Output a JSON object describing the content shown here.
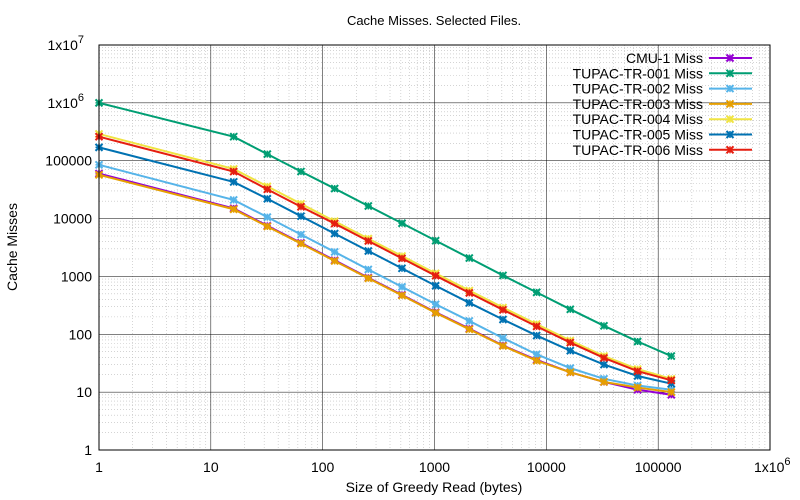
{
  "chart_data": {
    "type": "line",
    "title": "Cache Misses. Selected Files.",
    "xlabel": "Size of Greedy Read (bytes)",
    "ylabel": "Cache Misses",
    "x_scale": "log",
    "y_scale": "log",
    "xlim": [
      1,
      1000000
    ],
    "ylim": [
      1,
      10000000
    ],
    "grid": true,
    "legend_position": "top-right",
    "x_ticks": [
      {
        "value": 1,
        "base": "1",
        "exp": ""
      },
      {
        "value": 10,
        "base": "10",
        "exp": ""
      },
      {
        "value": 100,
        "base": "100",
        "exp": ""
      },
      {
        "value": 1000,
        "base": "1000",
        "exp": ""
      },
      {
        "value": 10000,
        "base": "10000",
        "exp": ""
      },
      {
        "value": 100000,
        "base": "100000",
        "exp": ""
      },
      {
        "value": 1000000,
        "base": "1x10",
        "exp": "6"
      }
    ],
    "y_ticks": [
      {
        "value": 1,
        "base": "1",
        "exp": ""
      },
      {
        "value": 10,
        "base": "10",
        "exp": ""
      },
      {
        "value": 100,
        "base": "100",
        "exp": ""
      },
      {
        "value": 1000,
        "base": "1000",
        "exp": ""
      },
      {
        "value": 10000,
        "base": "10000",
        "exp": ""
      },
      {
        "value": 100000,
        "base": "100000",
        "exp": ""
      },
      {
        "value": 1000000,
        "base": "1x10",
        "exp": "6"
      },
      {
        "value": 10000000,
        "base": "1x10",
        "exp": "7"
      }
    ],
    "x": [
      1,
      16,
      32,
      64,
      128,
      256,
      512,
      1024,
      2048,
      4096,
      8192,
      16384,
      32768,
      65536,
      131072
    ],
    "series": [
      {
        "name": "CMU-1 Miss",
        "color": "#9400d3",
        "marker": "x",
        "values": [
          60000,
          15000,
          7500,
          3800,
          1900,
          950,
          480,
          240,
          125,
          64,
          36,
          22,
          15,
          11,
          9
        ]
      },
      {
        "name": "TUPAC-TR-001 Miss",
        "color": "#009e73",
        "marker": "x",
        "values": [
          1000000,
          260000,
          130000,
          65000,
          33000,
          16500,
          8300,
          4150,
          2080,
          1040,
          530,
          270,
          140,
          75,
          42
        ]
      },
      {
        "name": "TUPAC-TR-002 Miss",
        "color": "#56b4e9",
        "marker": "x",
        "values": [
          85000,
          21000,
          10600,
          5300,
          2650,
          1320,
          660,
          330,
          170,
          86,
          45,
          26,
          17,
          13,
          11
        ]
      },
      {
        "name": "TUPAC-TR-003 Miss",
        "color": "#e69f00",
        "marker": "x",
        "values": [
          57000,
          14500,
          7300,
          3700,
          1850,
          930,
          470,
          235,
          122,
          63,
          35,
          22,
          15,
          12,
          10
        ]
      },
      {
        "name": "TUPAC-TR-004 Miss",
        "color": "#f0e442",
        "marker": "x",
        "values": [
          290000,
          72000,
          36000,
          18000,
          9000,
          4500,
          2250,
          1130,
          570,
          290,
          150,
          78,
          42,
          25,
          17
        ]
      },
      {
        "name": "TUPAC-TR-005 Miss",
        "color": "#0072b2",
        "marker": "x",
        "values": [
          170000,
          43000,
          22000,
          11000,
          5500,
          2750,
          1380,
          690,
          350,
          180,
          95,
          52,
          30,
          19,
          14
        ]
      },
      {
        "name": "TUPAC-TR-006 Miss",
        "color": "#e51e10",
        "marker": "x",
        "values": [
          260000,
          65000,
          32000,
          16000,
          8200,
          4100,
          2050,
          1030,
          520,
          265,
          137,
          72,
          39,
          23,
          16
        ]
      }
    ]
  }
}
